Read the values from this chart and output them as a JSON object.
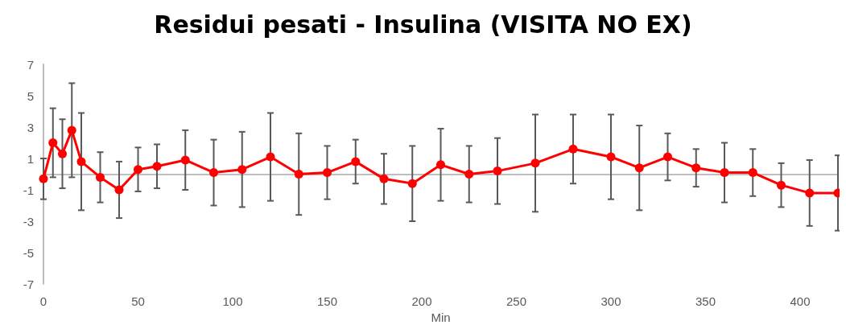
{
  "chart_data": {
    "type": "line",
    "title": "Residui pesati - Insulina (VISITA NO EX)",
    "xlabel": "Min",
    "x": [
      0,
      5,
      10,
      15,
      20,
      30,
      40,
      50,
      60,
      75,
      90,
      105,
      120,
      135,
      150,
      165,
      180,
      195,
      210,
      225,
      240,
      260,
      280,
      300,
      315,
      330,
      345,
      360,
      375,
      390,
      405,
      420
    ],
    "series": [
      {
        "color": "#ff0000",
        "values": [
          -0.3,
          2.0,
          1.3,
          2.8,
          0.8,
          -0.2,
          -1.0,
          0.3,
          0.5,
          0.9,
          0.1,
          0.3,
          1.1,
          0.0,
          0.1,
          0.8,
          -0.3,
          -0.6,
          0.6,
          0.0,
          0.2,
          0.7,
          1.6,
          1.1,
          0.4,
          1.1,
          0.4,
          0.1,
          0.1,
          -0.7,
          -1.2,
          -1.2
        ],
        "errors": [
          1.3,
          2.2,
          2.2,
          3.0,
          3.1,
          1.6,
          1.8,
          1.4,
          1.4,
          1.9,
          2.1,
          2.4,
          2.8,
          2.6,
          1.7,
          1.4,
          1.6,
          2.4,
          2.3,
          1.8,
          2.1,
          3.1,
          2.2,
          2.7,
          2.7,
          1.5,
          1.2,
          1.9,
          1.5,
          1.4,
          2.1,
          2.4
        ]
      }
    ],
    "xlim": [
      0,
      420
    ],
    "xticks": [
      0,
      50,
      100,
      150,
      200,
      250,
      300,
      350,
      400
    ],
    "ylim": [
      -7,
      7
    ],
    "yticks": [
      -7,
      -5,
      -3,
      -1,
      1,
      3,
      5,
      7
    ],
    "grid": false,
    "marker": "circle",
    "line_style": "solid"
  }
}
